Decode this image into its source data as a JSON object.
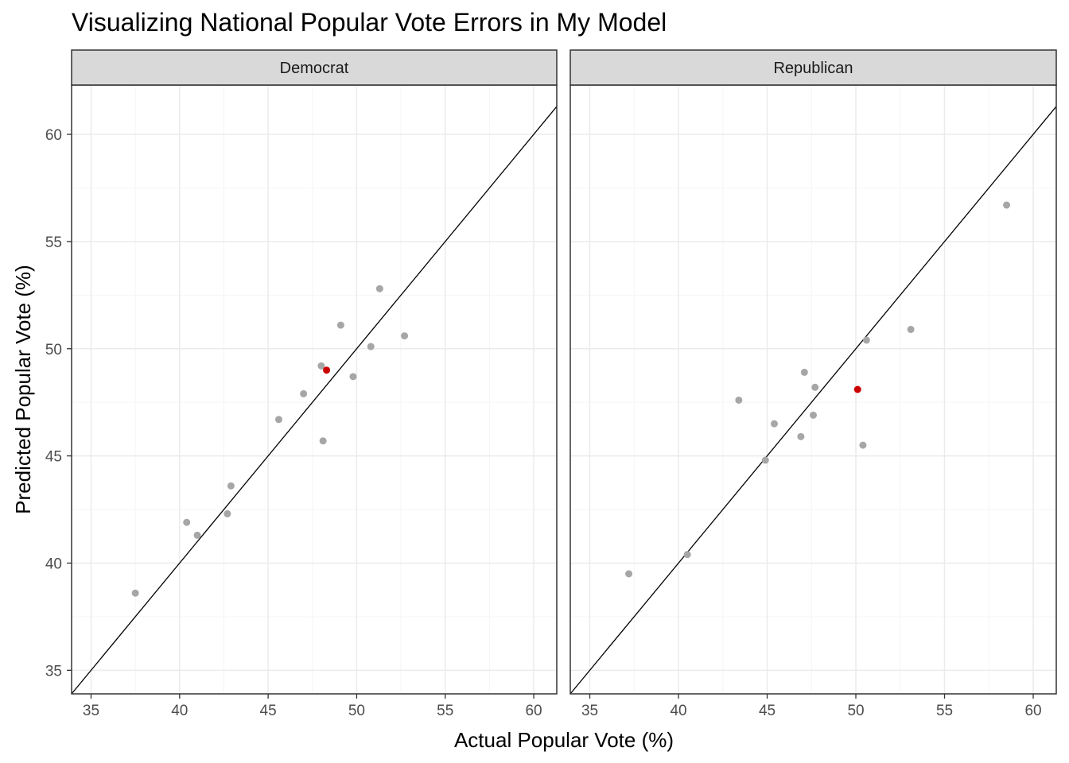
{
  "chart_data": {
    "type": "scatter",
    "title": "Visualizing National Popular Vote Errors in My Model",
    "xlabel": "Actual Popular Vote (%)",
    "ylabel": "Predicted Popular Vote (%)",
    "xlim": [
      33.9,
      61.3
    ],
    "ylim": [
      33.9,
      62.3
    ],
    "x_ticks": [
      35,
      40,
      45,
      50,
      55,
      60
    ],
    "y_ticks": [
      35,
      40,
      45,
      50,
      55,
      60
    ],
    "grid": true,
    "reference_line": "y = x",
    "colors": {
      "point": "#a6a6a6",
      "highlight": "#cc0000",
      "strip_fill": "#d9d9d9",
      "grid_major": "#ebebeb",
      "grid_minor": "#f5f5f5"
    },
    "panels": [
      {
        "name": "Democrat",
        "points": [
          {
            "x": 37.5,
            "y": 38.6
          },
          {
            "x": 40.4,
            "y": 41.9
          },
          {
            "x": 41.0,
            "y": 41.3
          },
          {
            "x": 42.7,
            "y": 42.3
          },
          {
            "x": 42.9,
            "y": 43.6
          },
          {
            "x": 45.6,
            "y": 46.7
          },
          {
            "x": 47.0,
            "y": 47.9
          },
          {
            "x": 48.0,
            "y": 49.2
          },
          {
            "x": 48.1,
            "y": 45.7
          },
          {
            "x": 49.1,
            "y": 51.1
          },
          {
            "x": 49.8,
            "y": 48.7
          },
          {
            "x": 50.8,
            "y": 50.1
          },
          {
            "x": 51.3,
            "y": 52.8
          },
          {
            "x": 52.7,
            "y": 50.6
          }
        ],
        "highlight": {
          "x": 48.3,
          "y": 49.0
        }
      },
      {
        "name": "Republican",
        "points": [
          {
            "x": 37.2,
            "y": 39.5
          },
          {
            "x": 40.5,
            "y": 40.4
          },
          {
            "x": 43.4,
            "y": 47.6
          },
          {
            "x": 44.9,
            "y": 44.8
          },
          {
            "x": 45.4,
            "y": 46.5
          },
          {
            "x": 46.9,
            "y": 45.9
          },
          {
            "x": 47.1,
            "y": 48.9
          },
          {
            "x": 47.6,
            "y": 46.9
          },
          {
            "x": 47.7,
            "y": 48.2
          },
          {
            "x": 50.4,
            "y": 45.5
          },
          {
            "x": 50.6,
            "y": 50.4
          },
          {
            "x": 53.1,
            "y": 50.9
          },
          {
            "x": 58.5,
            "y": 56.7
          }
        ],
        "highlight": {
          "x": 50.1,
          "y": 48.1
        }
      }
    ]
  }
}
